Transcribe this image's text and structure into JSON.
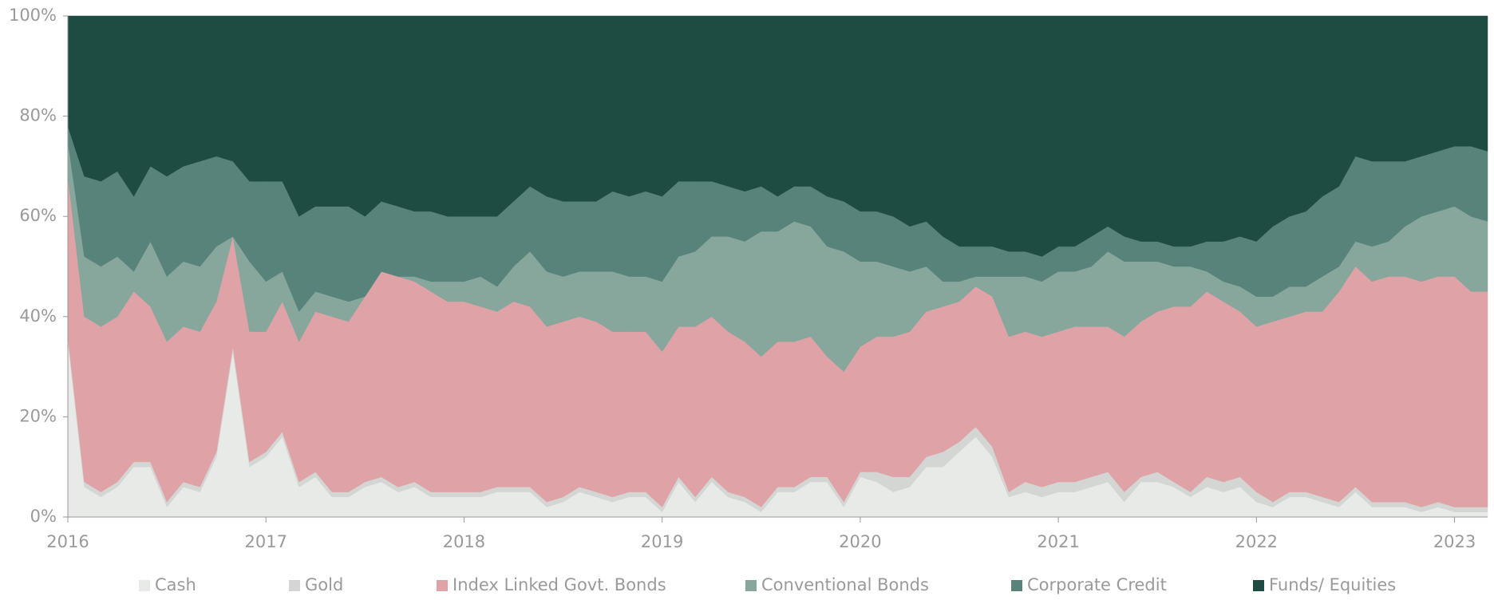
{
  "chart_data": {
    "type": "stacked_area",
    "x": [
      2016,
      2016.083,
      2016.167,
      2016.25,
      2016.333,
      2016.417,
      2016.5,
      2016.583,
      2016.667,
      2016.75,
      2016.833,
      2016.917,
      2017,
      2017.083,
      2017.167,
      2017.25,
      2017.333,
      2017.417,
      2017.5,
      2017.583,
      2017.667,
      2017.75,
      2017.833,
      2017.917,
      2018,
      2018.083,
      2018.167,
      2018.25,
      2018.333,
      2018.417,
      2018.5,
      2018.583,
      2018.667,
      2018.75,
      2018.833,
      2018.917,
      2019,
      2019.083,
      2019.167,
      2019.25,
      2019.333,
      2019.417,
      2019.5,
      2019.583,
      2019.667,
      2019.75,
      2019.833,
      2019.917,
      2020,
      2020.083,
      2020.167,
      2020.25,
      2020.333,
      2020.417,
      2020.5,
      2020.583,
      2020.667,
      2020.75,
      2020.833,
      2020.917,
      2021,
      2021.083,
      2021.167,
      2021.25,
      2021.333,
      2021.417,
      2021.5,
      2021.583,
      2021.667,
      2021.75,
      2021.833,
      2021.917,
      2022,
      2022.083,
      2022.167,
      2022.25,
      2022.333,
      2022.417,
      2022.5,
      2022.583,
      2022.667,
      2022.75,
      2022.833,
      2022.917,
      2023,
      2023.083,
      2023.167
    ],
    "xlim": [
      2016,
      2023.167
    ],
    "xticks": [
      2016,
      2017,
      2018,
      2019,
      2020,
      2021,
      2022,
      2023
    ],
    "ylim": [
      0,
      100
    ],
    "yticks": [
      {
        "value": 0,
        "label": "0%"
      },
      {
        "value": 20,
        "label": "20%"
      },
      {
        "value": 40,
        "label": "40%"
      },
      {
        "value": 60,
        "label": "60%"
      },
      {
        "value": 80,
        "label": "80%"
      },
      {
        "value": 100,
        "label": "100%"
      }
    ],
    "legend": "bottom",
    "series": [
      {
        "name": "Cash",
        "color": "#e8eae8",
        "values": [
          35,
          6,
          4,
          6,
          10,
          10,
          2,
          6,
          5,
          12,
          33,
          10,
          12,
          16,
          6,
          8,
          4,
          4,
          6,
          7,
          5,
          6,
          4,
          4,
          4,
          4,
          5,
          5,
          5,
          2,
          3,
          5,
          4,
          3,
          4,
          4,
          1,
          7,
          3,
          7,
          4,
          3,
          1,
          5,
          5,
          7,
          7,
          2,
          8,
          7,
          5,
          6,
          10,
          10,
          13,
          16,
          12,
          4,
          5,
          4,
          5,
          5,
          6,
          7,
          3,
          7,
          7,
          6,
          4,
          6,
          5,
          6,
          3,
          2,
          4,
          4,
          3,
          2,
          5,
          2,
          2,
          2,
          1,
          2,
          1,
          1,
          1
        ]
      },
      {
        "name": "Gold",
        "color": "#d4d6d4",
        "values": [
          1,
          1,
          1,
          1,
          1,
          1,
          1,
          1,
          1,
          1,
          1,
          1,
          1,
          1,
          1,
          1,
          1,
          1,
          1,
          1,
          1,
          1,
          1,
          1,
          1,
          1,
          1,
          1,
          1,
          1,
          1,
          1,
          1,
          1,
          1,
          1,
          1,
          1,
          1,
          1,
          1,
          1,
          1,
          1,
          1,
          1,
          1,
          1,
          1,
          2,
          3,
          2,
          2,
          3,
          2,
          2,
          2,
          1,
          2,
          2,
          2,
          2,
          2,
          2,
          2,
          1,
          2,
          1,
          1,
          2,
          2,
          2,
          2,
          1,
          1,
          1,
          1,
          1,
          1,
          1,
          1,
          1,
          1,
          1,
          1,
          1,
          1
        ]
      },
      {
        "name": "Index Linked Govt. Bonds",
        "color": "#dfa3a7",
        "values": [
          32,
          33,
          33,
          33,
          34,
          31,
          32,
          31,
          31,
          30,
          22,
          26,
          24,
          26,
          28,
          32,
          35,
          34,
          37,
          41,
          42,
          40,
          40,
          38,
          38,
          37,
          35,
          37,
          36,
          35,
          35,
          34,
          34,
          33,
          32,
          32,
          31,
          30,
          34,
          32,
          32,
          31,
          30,
          29,
          29,
          28,
          24,
          26,
          25,
          27,
          28,
          29,
          29,
          29,
          28,
          28,
          30,
          31,
          30,
          30,
          30,
          31,
          30,
          29,
          31,
          31,
          32,
          35,
          37,
          37,
          36,
          33,
          33,
          36,
          35,
          36,
          37,
          42,
          44,
          44,
          45,
          45,
          45,
          45,
          46,
          43,
          43
        ]
      },
      {
        "name": "Conventional Bonds",
        "color": "#87a69c",
        "values": [
          7,
          12,
          12,
          12,
          4,
          13,
          13,
          13,
          13,
          11,
          0,
          14,
          10,
          6,
          6,
          4,
          4,
          4,
          0,
          0,
          0,
          1,
          2,
          4,
          4,
          6,
          5,
          7,
          11,
          11,
          9,
          9,
          10,
          12,
          11,
          11,
          14,
          14,
          15,
          16,
          19,
          20,
          25,
          22,
          24,
          22,
          22,
          24,
          17,
          15,
          14,
          12,
          9,
          5,
          4,
          2,
          4,
          12,
          11,
          11,
          12,
          11,
          12,
          15,
          15,
          12,
          10,
          8,
          8,
          4,
          4,
          5,
          6,
          5,
          6,
          5,
          7,
          5,
          5,
          7,
          7,
          10,
          13,
          13,
          14,
          15,
          14
        ]
      },
      {
        "name": "Corporate Credit",
        "color": "#57837a",
        "values": [
          3,
          16,
          17,
          17,
          15,
          15,
          20,
          19,
          21,
          18,
          15,
          16,
          20,
          18,
          19,
          17,
          18,
          19,
          16,
          14,
          14,
          13,
          14,
          13,
          13,
          12,
          14,
          13,
          13,
          15,
          15,
          14,
          14,
          16,
          16,
          17,
          17,
          15,
          14,
          11,
          10,
          10,
          9,
          7,
          7,
          8,
          10,
          10,
          10,
          10,
          10,
          9,
          9,
          9,
          7,
          6,
          6,
          5,
          5,
          5,
          5,
          5,
          6,
          5,
          5,
          4,
          4,
          4,
          4,
          6,
          8,
          10,
          11,
          14,
          14,
          15,
          16,
          16,
          17,
          17,
          16,
          13,
          12,
          12,
          12,
          14,
          14
        ]
      },
      {
        "name": "Funds/ Equities",
        "color": "#1f4c42",
        "values": [
          22,
          32,
          33,
          31,
          36,
          30,
          32,
          30,
          29,
          28,
          29,
          33,
          33,
          33,
          40,
          38,
          38,
          38,
          40,
          37,
          38,
          39,
          39,
          40,
          40,
          40,
          40,
          37,
          34,
          36,
          37,
          37,
          37,
          35,
          36,
          35,
          36,
          33,
          33,
          33,
          34,
          35,
          34,
          36,
          34,
          34,
          36,
          37,
          39,
          39,
          40,
          42,
          41,
          44,
          46,
          46,
          46,
          47,
          47,
          48,
          46,
          46,
          44,
          42,
          44,
          45,
          45,
          46,
          46,
          45,
          45,
          44,
          45,
          42,
          40,
          39,
          36,
          34,
          28,
          29,
          29,
          29,
          28,
          27,
          26,
          26,
          27
        ]
      }
    ]
  }
}
